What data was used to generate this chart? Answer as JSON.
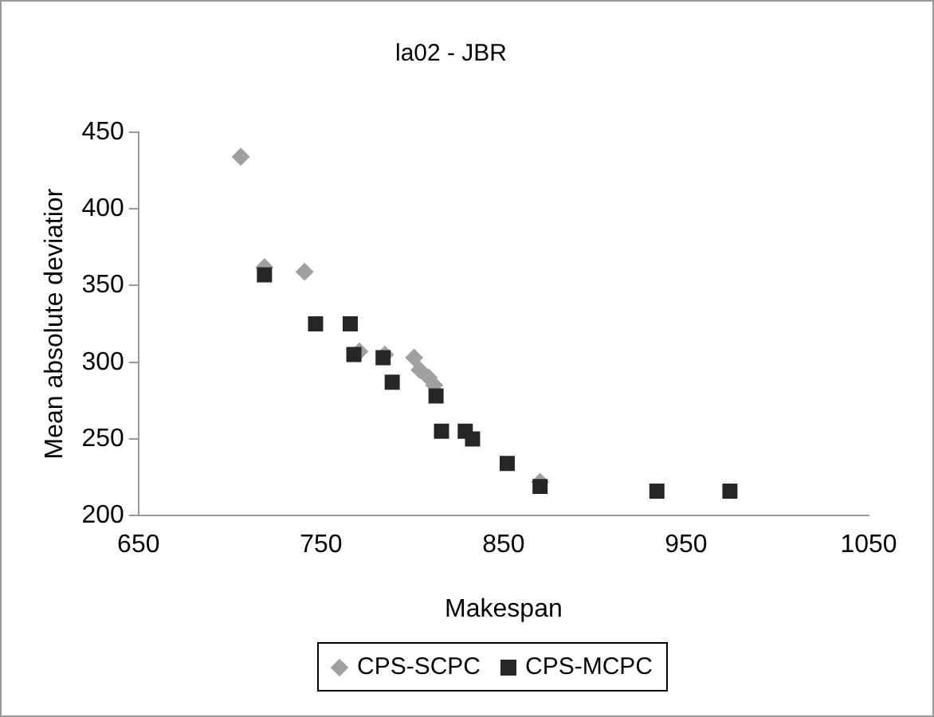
{
  "chart_data": {
    "type": "scatter",
    "title": "la02 - JBR",
    "xlabel": "Makespan",
    "ylabel": "Mean absolute deviatior",
    "xlim": [
      650,
      1050
    ],
    "xticks": [
      650,
      750,
      850,
      950,
      1050
    ],
    "ylim": [
      200,
      450
    ],
    "yticks": [
      200,
      250,
      300,
      350,
      400,
      450
    ],
    "grid": false,
    "legend": "bottom",
    "series": [
      {
        "name": "CPS-SCPC",
        "color": "#a0a0a0",
        "marker": "diamond",
        "x": [
          706,
          719,
          741,
          771,
          785,
          801,
          804,
          809,
          812,
          870
        ],
        "values": [
          434,
          362,
          359,
          307,
          305,
          303,
          295,
          290,
          285,
          222
        ]
      },
      {
        "name": "CPS-MCPC",
        "color": "#262626",
        "marker": "square",
        "x": [
          719,
          747,
          766,
          768,
          784,
          789,
          813,
          816,
          829,
          833,
          852,
          870,
          934,
          974
        ],
        "values": [
          357,
          325,
          325,
          305,
          303,
          287,
          278,
          255,
          255,
          250,
          234,
          219,
          216,
          216
        ]
      }
    ]
  }
}
